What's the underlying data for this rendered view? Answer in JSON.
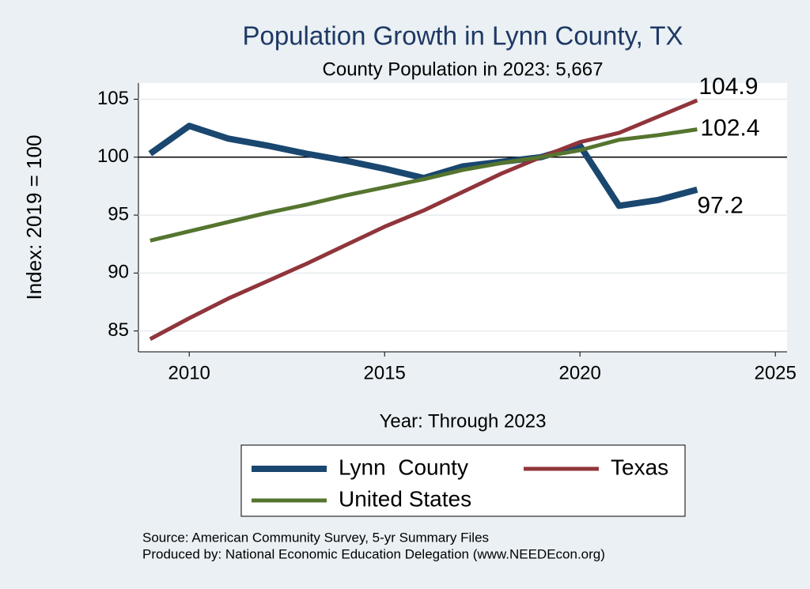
{
  "chart_data": {
    "type": "line",
    "title": "Population Growth in Lynn County, TX",
    "subtitle": "County Population in 2023: 5,667",
    "x_label": "Year: Through 2023",
    "y_label": "Index: 2019 = 100",
    "x": [
      2009,
      2010,
      2011,
      2012,
      2013,
      2014,
      2015,
      2016,
      2017,
      2018,
      2019,
      2020,
      2021,
      2022,
      2023
    ],
    "series": [
      {
        "name": "Lynn  County",
        "color": "#1a476f",
        "values": [
          100.3,
          102.7,
          101.6,
          101.0,
          100.3,
          99.7,
          99.0,
          98.2,
          99.2,
          99.6,
          100.0,
          101.0,
          95.8,
          96.3,
          97.2
        ]
      },
      {
        "name": "Texas",
        "color": "#90353b",
        "values": [
          84.3,
          86.1,
          87.8,
          89.3,
          90.8,
          92.4,
          94.0,
          95.4,
          97.0,
          98.6,
          100.0,
          101.3,
          102.1,
          103.5,
          104.9
        ]
      },
      {
        "name": "United States",
        "color": "#55752f",
        "values": [
          92.8,
          93.6,
          94.4,
          95.2,
          95.9,
          96.7,
          97.4,
          98.1,
          98.9,
          99.5,
          100.0,
          100.6,
          101.5,
          101.9,
          102.4
        ]
      }
    ],
    "xlim": [
      2008.7,
      2025.3
    ],
    "xticks": [
      2010,
      2015,
      2020,
      2025
    ],
    "ylim": [
      83.2,
      106.4
    ],
    "yticks": [
      85,
      90,
      95,
      100,
      105
    ],
    "reference_line": 100,
    "grid": true,
    "source": [
      "Source: American Community Survey, 5-yr Summary Files",
      "Produced by: National Economic Education Delegation (www.NEEDEcon.org)"
    ]
  }
}
